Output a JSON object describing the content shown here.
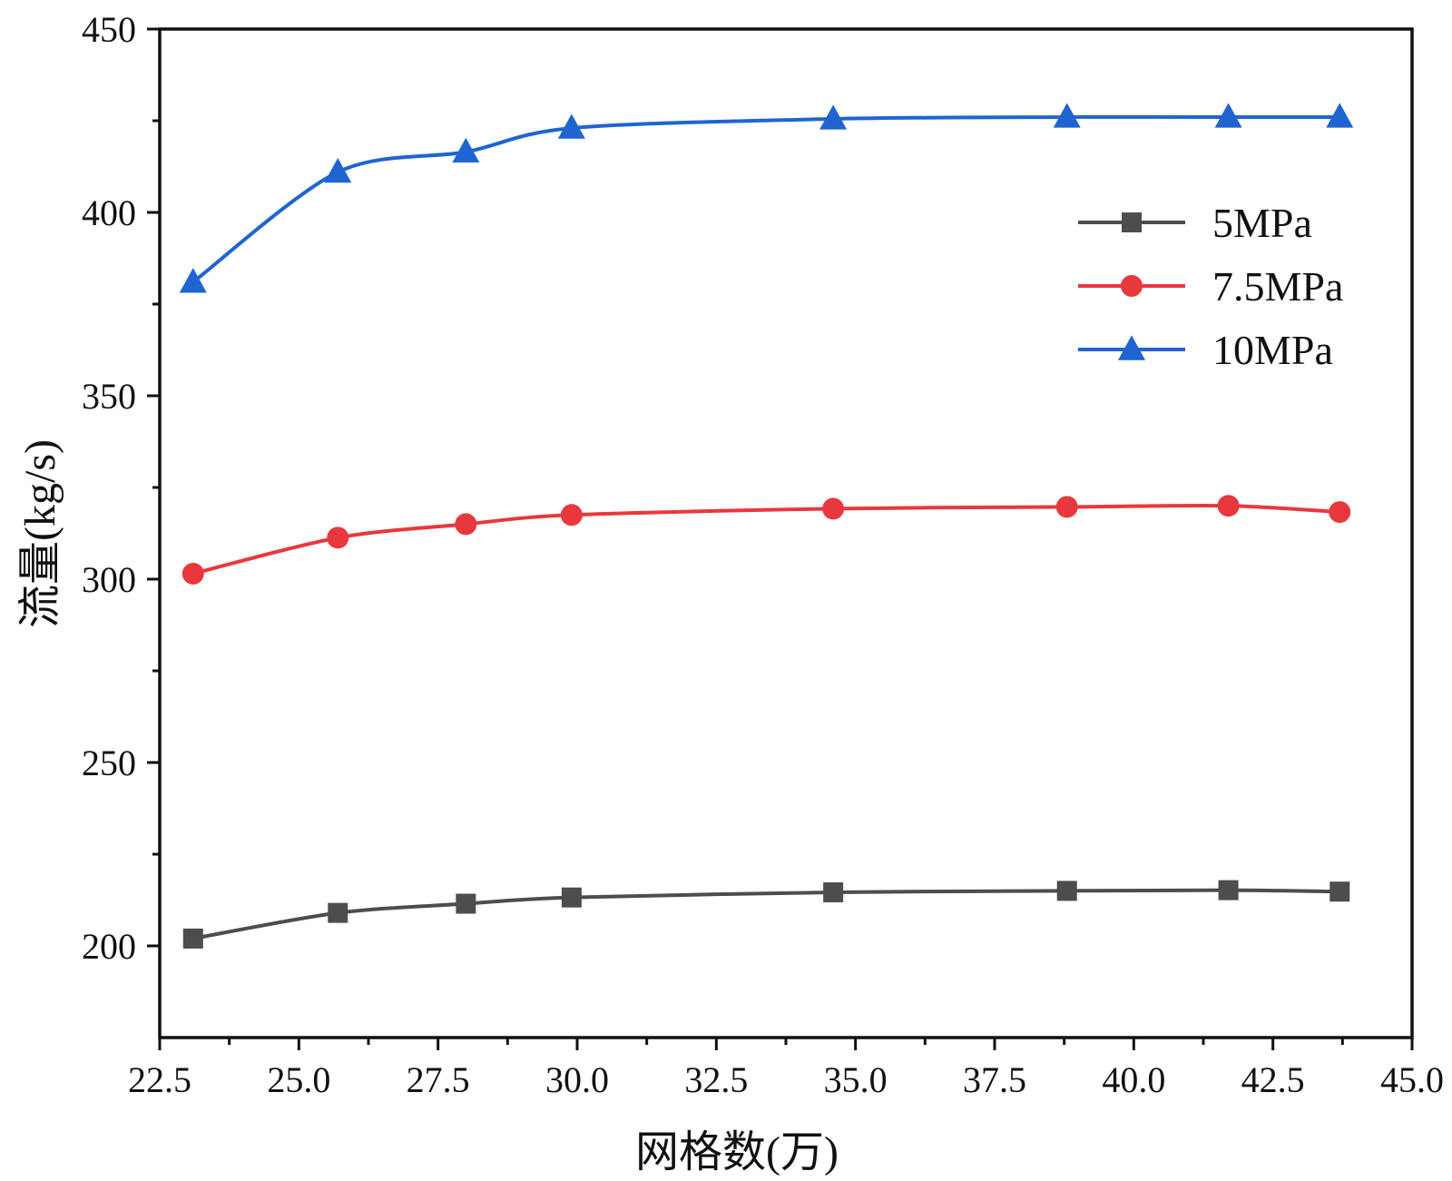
{
  "chart_data": {
    "type": "line",
    "title": "",
    "xlabel": "网格数(万)",
    "ylabel": "流量(kg/s)",
    "xlim": [
      22.5,
      45.0
    ],
    "ylim": [
      175,
      450
    ],
    "x_ticks": [
      "22.5",
      "25.0",
      "27.5",
      "30.0",
      "32.5",
      "35.0",
      "37.5",
      "40.0",
      "42.5",
      "45.0"
    ],
    "y_ticks": [
      "200",
      "250",
      "300",
      "350",
      "400",
      "450"
    ],
    "x": [
      23.1,
      25.7,
      28.0,
      29.9,
      34.6,
      38.8,
      41.7,
      43.7
    ],
    "series": [
      {
        "name": "5MPa",
        "color": "#4d4d4d",
        "marker": "square",
        "values": [
          202.0,
          209.0,
          211.5,
          213.2,
          214.6,
          215.0,
          215.2,
          214.8
        ]
      },
      {
        "name": "7.5MPa",
        "color": "#e8383d",
        "marker": "circle",
        "values": [
          301.5,
          311.3,
          315.0,
          317.5,
          319.2,
          319.7,
          320.0,
          318.3
        ]
      },
      {
        "name": "10MPa",
        "color": "#1f64d1",
        "marker": "triangle",
        "values": [
          381.0,
          411.0,
          416.5,
          423.0,
          425.5,
          426.0,
          426.0,
          426.0
        ]
      }
    ],
    "legend_position": "top-right"
  }
}
